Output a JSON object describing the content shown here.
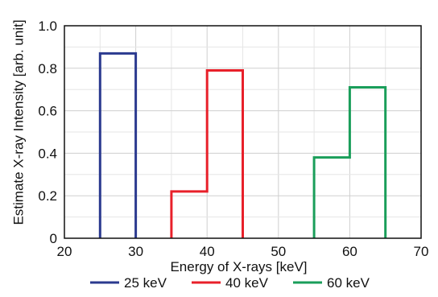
{
  "chart_data": {
    "type": "line",
    "title": "",
    "xlabel": "Energy of X-rays [keV]",
    "ylabel": "Estimate X-ray Intensity [arb. unit]",
    "xlim": [
      20,
      70
    ],
    "ylim": [
      0,
      1.0
    ],
    "x_ticks": [
      20,
      30,
      40,
      50,
      60,
      70
    ],
    "x_tick_labels": [
      "20",
      "30",
      "40",
      "50",
      "60",
      "70"
    ],
    "y_ticks": [
      0,
      0.2,
      0.4,
      0.6,
      0.8,
      1.0
    ],
    "y_tick_labels": [
      "0",
      "0.2",
      "0.4",
      "0.6",
      "0.8",
      "1.0"
    ],
    "grid": true,
    "legend_position": "bottom",
    "series": [
      {
        "name": "25 keV",
        "color": "#2b3a8f",
        "x": [
          25,
          25,
          30,
          30
        ],
        "y": [
          0,
          0.87,
          0.87,
          0
        ]
      },
      {
        "name": "40 keV",
        "color": "#e8202a",
        "x": [
          35,
          35,
          40,
          40,
          45,
          45
        ],
        "y": [
          0,
          0.22,
          0.22,
          0.79,
          0.79,
          0
        ]
      },
      {
        "name": "60 keV",
        "color": "#1a9e5a",
        "x": [
          55,
          55,
          60,
          60,
          65,
          65
        ],
        "y": [
          0,
          0.38,
          0.38,
          0.71,
          0.71,
          0
        ]
      }
    ]
  }
}
